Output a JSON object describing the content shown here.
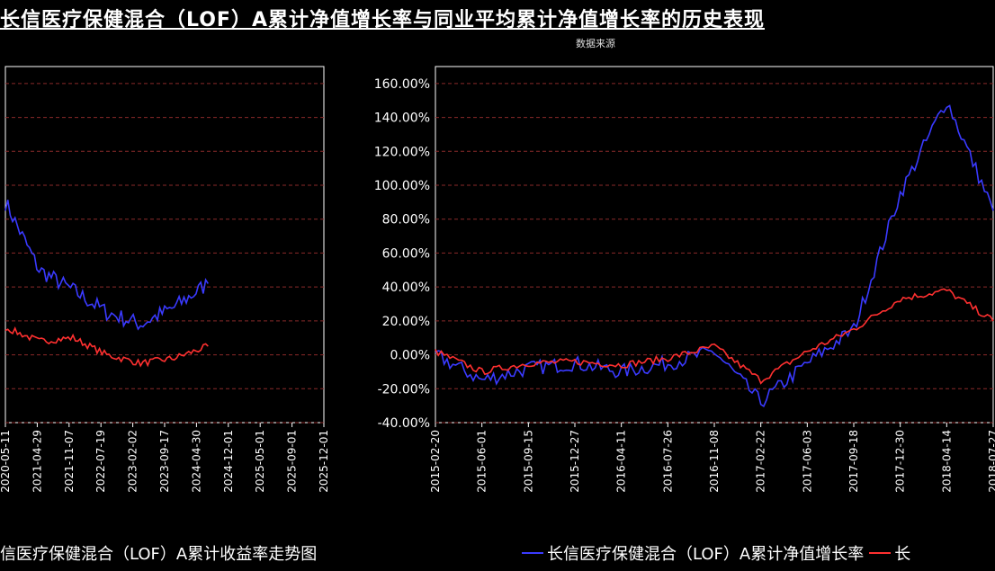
{
  "title": "长信医疗保健混合（LOF）A累计净值增长率与同业平均累计净值增长率的历史表现",
  "subtitle": "数据来源",
  "legend": {
    "left_text": "信医疗保健混合（LOF）A累计收益率走势图",
    "items": [
      {
        "label": "长信医疗保健混合（LOF）A累计净值增长率",
        "color": "#3a3aff"
      },
      {
        "label": "长",
        "color": "#ff3030"
      }
    ]
  },
  "colors": {
    "grid": "#8a2a2a",
    "axis": "#ffffff",
    "blue": "#3a3aff",
    "red": "#ff3030"
  },
  "chart_data": [
    {
      "type": "line",
      "title": "",
      "xlabel": "",
      "ylabel": "",
      "ylim": [
        -40,
        170
      ],
      "grid": true,
      "x": [
        "2020-05-11",
        "2021-04-29",
        "2021-11-07",
        "2022-07-19",
        "2023-02-02",
        "2023-09-17",
        "2024-04-30",
        "2024-12-01",
        "2025-05-01",
        "2025-09-01",
        "2025-12-01"
      ],
      "tick_labels": [
        "2020-05-11",
        "2021-04-29",
        "2021-11-07",
        "2022-07-19",
        "2023-02-02",
        "2023-09-17",
        "2024-04-30",
        "2024-12-01",
        "2025-05-01",
        "2025-09-01",
        "2025-12-01"
      ],
      "series": [
        {
          "values": [
            90,
            50,
            38,
            25,
            18,
            28,
            42,
            null,
            null,
            null,
            null
          ]
        },
        {
          "values": [
            16,
            8,
            10,
            0,
            -5,
            -2,
            5,
            null,
            null,
            null,
            null
          ]
        }
      ]
    },
    {
      "type": "line",
      "title": "",
      "xlabel": "",
      "ylabel": "",
      "ylim": [
        -40,
        170
      ],
      "grid": true,
      "tick_labels": [
        "-40.00%",
        "-20.00%",
        "0.00%",
        "20.00%",
        "40.00%",
        "60.00%",
        "80.00%",
        "100.00%",
        "120.00%",
        "140.00%",
        "160.00%"
      ],
      "yticks": [
        -40,
        -20,
        0,
        20,
        40,
        60,
        80,
        100,
        120,
        140,
        160
      ],
      "x": [
        "2015-02-20",
        "2015-06-01",
        "2015-09-15",
        "2015-12-27",
        "2016-04-11",
        "2016-07-26",
        "2016-11-08",
        "2017-02-22",
        "2017-06-03",
        "2017-09-18",
        "2017-12-30",
        "2018-04-14",
        "2018-07-27"
      ],
      "x_tick_labels": [
        "2015-02-20",
        "2015-06-01",
        "2015-09-15",
        "2015-12-27",
        "2016-04-11",
        "2016-07-26",
        "2016-11-08",
        "2017-02-22",
        "2017-06-03",
        "2017-09-18",
        "2017-12-30",
        "2018-04-14",
        "2018-07-27"
      ],
      "series": [
        {
          "values": [
            0,
            -15,
            -8,
            -5,
            -10,
            -5,
            2,
            -28,
            -5,
            15,
            95,
            150,
            85
          ]
        },
        {
          "values": [
            2,
            -10,
            -5,
            -4,
            -6,
            -2,
            5,
            -15,
            2,
            15,
            33,
            38,
            20
          ]
        }
      ]
    }
  ]
}
